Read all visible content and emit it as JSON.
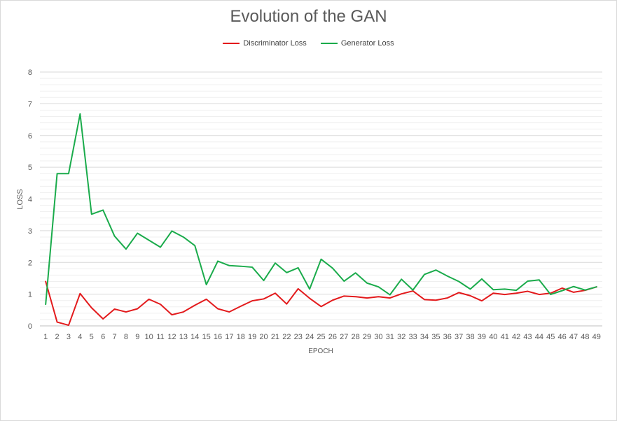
{
  "chart_data": {
    "type": "line",
    "title": "Evolution of the GAN",
    "xlabel": "EPOCH",
    "ylabel": "LOSS",
    "ylim": [
      0,
      8
    ],
    "yticks": [
      0,
      1,
      2,
      3,
      4,
      5,
      6,
      7,
      8
    ],
    "grid": true,
    "legend_position": "top",
    "categories": [
      1,
      2,
      3,
      4,
      5,
      6,
      7,
      8,
      9,
      10,
      11,
      12,
      13,
      14,
      15,
      16,
      17,
      18,
      19,
      20,
      21,
      22,
      23,
      24,
      25,
      26,
      27,
      28,
      29,
      30,
      31,
      32,
      33,
      34,
      35,
      36,
      37,
      38,
      39,
      40,
      41,
      42,
      43,
      44,
      45,
      46,
      47,
      48,
      49
    ],
    "series": [
      {
        "name": "Discriminator Loss",
        "color": "#e31a1c",
        "values": [
          1.4,
          0.12,
          0.02,
          1.02,
          0.57,
          0.22,
          0.53,
          0.44,
          0.54,
          0.84,
          0.68,
          0.35,
          0.44,
          0.65,
          0.84,
          0.54,
          0.44,
          0.62,
          0.79,
          0.85,
          1.03,
          0.69,
          1.17,
          0.87,
          0.61,
          0.81,
          0.94,
          0.92,
          0.88,
          0.92,
          0.88,
          1.01,
          1.1,
          0.83,
          0.81,
          0.88,
          1.05,
          0.95,
          0.79,
          1.03,
          0.99,
          1.03,
          1.09,
          0.99,
          1.03,
          1.19,
          1.06,
          1.12,
          1.23
        ]
      },
      {
        "name": "Generator Loss",
        "color": "#1aab4b",
        "values": [
          0.68,
          4.8,
          4.8,
          6.68,
          3.52,
          3.65,
          2.83,
          2.42,
          2.92,
          2.7,
          2.48,
          2.99,
          2.8,
          2.53,
          1.3,
          2.04,
          1.9,
          1.88,
          1.85,
          1.43,
          1.98,
          1.68,
          1.83,
          1.16,
          2.1,
          1.82,
          1.41,
          1.67,
          1.35,
          1.23,
          0.98,
          1.47,
          1.13,
          1.62,
          1.76,
          1.57,
          1.4,
          1.16,
          1.48,
          1.14,
          1.16,
          1.12,
          1.41,
          1.45,
          0.99,
          1.11,
          1.24,
          1.13,
          1.23
        ]
      }
    ]
  }
}
